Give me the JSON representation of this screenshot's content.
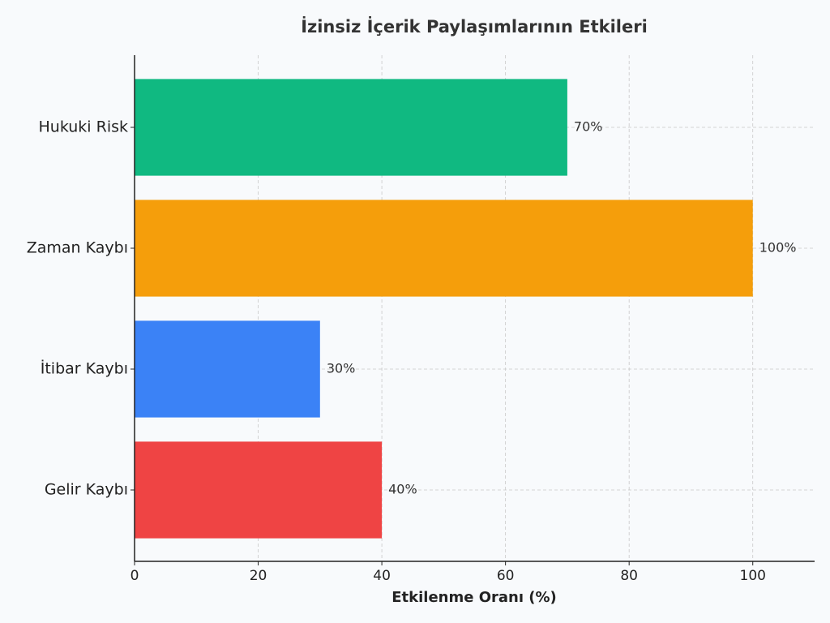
{
  "chart_data": {
    "type": "barh",
    "title": "İzinsiz İçerik Paylaşımlarının Etkileri",
    "xlabel": "Etkilenme Oranı (%)",
    "categories": [
      "Hukuki Risk",
      "Zaman Kaybı",
      "İtibar Kaybı",
      "Gelir Kaybı"
    ],
    "values": [
      70,
      100,
      30,
      40
    ],
    "value_labels": [
      "70%",
      "100%",
      "30%",
      "40%"
    ],
    "colors": [
      "#10b981",
      "#f59e0b",
      "#3b82f6",
      "#ef4444"
    ],
    "xlim": [
      0,
      110
    ],
    "xticks": [
      0,
      20,
      40,
      60,
      80,
      100
    ],
    "grid": true
  }
}
